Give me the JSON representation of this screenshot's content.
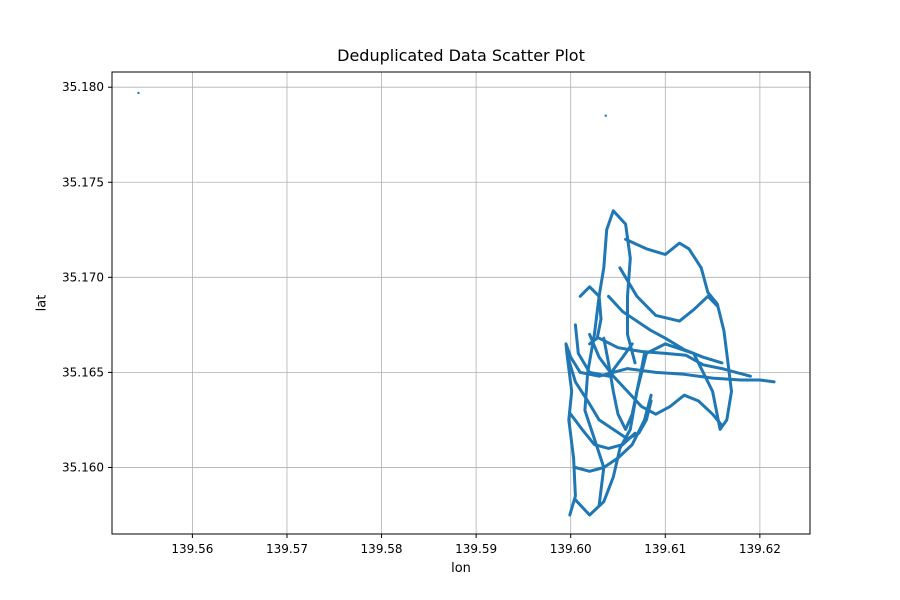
{
  "chart_data": {
    "type": "scatter",
    "title": "Deduplicated Data Scatter Plot",
    "xlabel": "lon",
    "ylabel": "lat",
    "xlim": [
      139.5515,
      139.6253
    ],
    "ylim": [
      35.1565,
      35.1808
    ],
    "xticks": [
      139.56,
      139.57,
      139.58,
      139.59,
      139.6,
      139.61,
      139.62
    ],
    "xtick_labels": [
      "139.56",
      "139.57",
      "139.58",
      "139.59",
      "139.60",
      "139.61",
      "139.62"
    ],
    "yticks": [
      35.16,
      35.165,
      35.17,
      35.175,
      35.18
    ],
    "ytick_labels": [
      "35.160",
      "35.165",
      "35.170",
      "35.175",
      "35.180"
    ],
    "grid": true,
    "marker_color": "#1f77b4",
    "outliers": [
      {
        "lon": 139.5543,
        "lat": 35.1797
      },
      {
        "lon": 139.6037,
        "lat": 35.1785
      }
    ],
    "tracks": [
      [
        [
          139.5999,
          35.1575
        ],
        [
          139.6005,
          35.1585
        ],
        [
          139.6003,
          35.1605
        ],
        [
          139.5998,
          35.1625
        ],
        [
          139.6001,
          35.164
        ],
        [
          139.5996,
          35.166
        ],
        [
          139.5995,
          35.1665
        ],
        [
          139.6,
          35.1658
        ],
        [
          139.601,
          35.165
        ],
        [
          139.603,
          35.1648
        ],
        [
          139.606,
          35.1652
        ],
        [
          139.609,
          35.165
        ],
        [
          139.612,
          35.1649
        ],
        [
          139.615,
          35.1647
        ],
        [
          139.618,
          35.1646
        ],
        [
          139.62,
          35.1646
        ],
        [
          139.6215,
          35.1645
        ]
      ],
      [
        [
          139.6005,
          35.1583
        ],
        [
          139.602,
          35.1575
        ],
        [
          139.6035,
          35.1582
        ],
        [
          139.6045,
          35.1595
        ],
        [
          139.6052,
          35.161
        ],
        [
          139.6063,
          35.162
        ],
        [
          139.607,
          35.164
        ],
        [
          139.608,
          35.166
        ],
        [
          139.61,
          35.1665
        ],
        [
          139.613,
          35.166
        ],
        [
          139.615,
          35.164
        ],
        [
          139.6158,
          35.162
        ],
        [
          139.6165,
          35.1625
        ],
        [
          139.617,
          35.164
        ]
      ],
      [
        [
          139.603,
          35.158
        ],
        [
          139.6035,
          35.16
        ],
        [
          139.6025,
          35.1615
        ],
        [
          139.6015,
          35.163
        ],
        [
          139.6018,
          35.165
        ],
        [
          139.6025,
          35.167
        ],
        [
          139.603,
          35.169
        ],
        [
          139.6035,
          35.1705
        ],
        [
          139.6038,
          35.1725
        ],
        [
          139.6045,
          35.1735
        ],
        [
          139.6058,
          35.1728
        ],
        [
          139.6063,
          35.171
        ],
        [
          139.606,
          35.169
        ],
        [
          139.606,
          35.167
        ],
        [
          139.6068,
          35.1655
        ]
      ],
      [
        [
          139.6058,
          35.172
        ],
        [
          139.608,
          35.1715
        ],
        [
          139.61,
          35.1712
        ],
        [
          139.6115,
          35.1718
        ],
        [
          139.6125,
          35.1715
        ],
        [
          139.6138,
          35.1705
        ],
        [
          139.6145,
          35.1692
        ],
        [
          139.6155,
          35.1686
        ],
        [
          139.6162,
          35.1672
        ],
        [
          139.6165,
          35.166
        ],
        [
          139.6168,
          35.1648
        ],
        [
          139.617,
          35.164
        ]
      ],
      [
        [
          139.6052,
          35.1705
        ],
        [
          139.607,
          35.169
        ],
        [
          139.609,
          35.168
        ],
        [
          139.6115,
          35.1677
        ],
        [
          139.613,
          35.1683
        ],
        [
          139.6145,
          35.169
        ],
        [
          139.6155,
          35.1685
        ]
      ],
      [
        [
          139.604,
          35.169
        ],
        [
          139.6055,
          35.1682
        ],
        [
          139.607,
          35.1677
        ],
        [
          139.6085,
          35.1672
        ],
        [
          139.61,
          35.1668
        ],
        [
          139.612,
          35.1662
        ],
        [
          139.614,
          35.1658
        ],
        [
          139.616,
          35.1655
        ]
      ],
      [
        [
          139.603,
          35.1668
        ],
        [
          139.605,
          35.1663
        ],
        [
          139.6075,
          35.1661
        ],
        [
          139.61,
          35.166
        ],
        [
          139.6122,
          35.1659
        ],
        [
          139.614,
          35.1654
        ],
        [
          139.616,
          35.1652
        ],
        [
          139.6175,
          35.165
        ],
        [
          139.619,
          35.1648
        ]
      ],
      [
        [
          139.601,
          35.169
        ],
        [
          139.602,
          35.1695
        ],
        [
          139.603,
          35.169
        ],
        [
          139.6032,
          35.1678
        ],
        [
          139.6028,
          35.1668
        ],
        [
          139.602,
          35.1665
        ]
      ],
      [
        [
          139.6005,
          35.1675
        ],
        [
          139.6008,
          35.166
        ],
        [
          139.602,
          35.165
        ],
        [
          139.604,
          35.1648
        ],
        [
          139.6055,
          35.1658
        ],
        [
          139.6065,
          35.1665
        ]
      ],
      [
        [
          139.5997,
          35.1658
        ],
        [
          139.6005,
          35.1645
        ],
        [
          139.6018,
          35.1635
        ],
        [
          139.603,
          35.1625
        ],
        [
          139.6045,
          35.162
        ],
        [
          139.606,
          35.1615
        ],
        [
          139.6072,
          35.1618
        ],
        [
          139.608,
          35.1625
        ],
        [
          139.6085,
          35.1635
        ]
      ],
      [
        [
          139.6,
          35.1628
        ],
        [
          139.6012,
          35.162
        ],
        [
          139.6025,
          35.1612
        ],
        [
          139.604,
          35.161
        ],
        [
          139.6055,
          35.1612
        ],
        [
          139.6068,
          35.1618
        ]
      ],
      [
        [
          139.6035,
          35.1668
        ],
        [
          139.604,
          35.1655
        ],
        [
          139.6045,
          35.164
        ],
        [
          139.605,
          35.1628
        ],
        [
          139.6058,
          35.162
        ],
        [
          139.6065,
          35.1628
        ],
        [
          139.607,
          35.164
        ],
        [
          139.6075,
          35.1652
        ],
        [
          139.6078,
          35.166
        ]
      ],
      [
        [
          139.602,
          35.167
        ],
        [
          139.603,
          35.1658
        ],
        [
          139.6045,
          35.1648
        ],
        [
          139.606,
          35.164
        ],
        [
          139.6075,
          35.1632
        ],
        [
          139.609,
          35.1628
        ],
        [
          139.6105,
          35.1632
        ],
        [
          139.612,
          35.1638
        ],
        [
          139.6135,
          35.1635
        ],
        [
          139.615,
          35.1628
        ],
        [
          139.616,
          35.1622
        ]
      ],
      [
        [
          139.6005,
          35.16
        ],
        [
          139.602,
          35.1598
        ],
        [
          139.6035,
          35.16
        ],
        [
          139.605,
          35.1605
        ],
        [
          139.6065,
          35.1612
        ],
        [
          139.6078,
          35.1625
        ],
        [
          139.6085,
          35.1638
        ]
      ]
    ]
  }
}
